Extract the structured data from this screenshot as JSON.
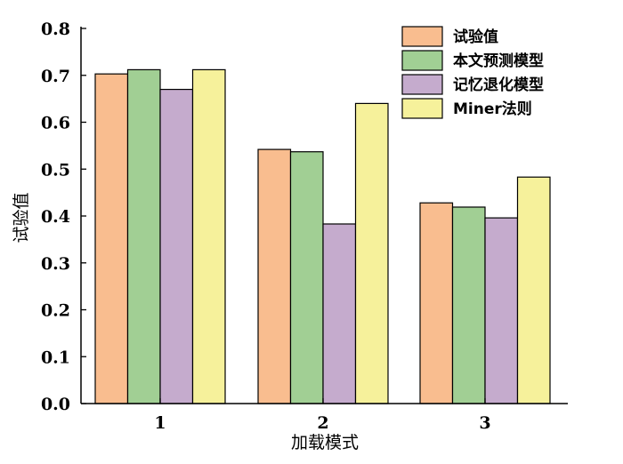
{
  "chart_data": {
    "type": "bar",
    "xlabel": "加载模式",
    "ylabel": "试验值",
    "categories": [
      "1",
      "2",
      "3"
    ],
    "ylim": [
      0.0,
      0.8
    ],
    "yticks": [
      "0.0",
      "0.1",
      "0.2",
      "0.3",
      "0.4",
      "0.5",
      "0.6",
      "0.7",
      "0.8"
    ],
    "legend_position": "top-right",
    "grid": false,
    "series": [
      {
        "name": "试验值",
        "color": "#f9bd8f",
        "values": [
          0.703,
          0.542,
          0.428
        ]
      },
      {
        "name": "本文预测模型",
        "color": "#a1cf94",
        "values": [
          0.712,
          0.537,
          0.419
        ]
      },
      {
        "name": "记忆退化模型",
        "color": "#c5abcd",
        "values": [
          0.67,
          0.383,
          0.396
        ]
      },
      {
        "name": "Miner法则",
        "color": "#f6f19b",
        "values": [
          0.712,
          0.64,
          0.483
        ]
      }
    ]
  }
}
